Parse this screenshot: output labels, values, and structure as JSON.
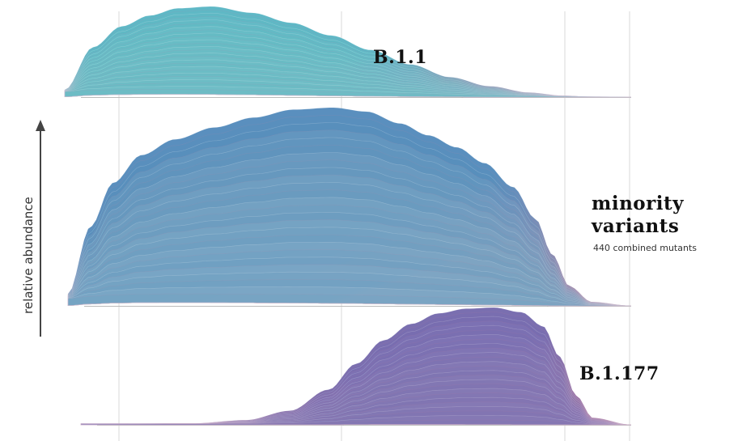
{
  "chart_data": {
    "type": "area",
    "style": "stacked streamgraph panels",
    "ylabel": "relative abundance",
    "grid": true,
    "panels": [
      {
        "name": "B.1.1",
        "subtitle": "",
        "colors": {
          "core": "#5fb8c6",
          "edge": "#a98bb0",
          "highlight": "#8fd2d8"
        },
        "profile": [
          [
            0.0,
            0.08
          ],
          [
            0.05,
            0.55
          ],
          [
            0.1,
            0.78
          ],
          [
            0.15,
            0.9
          ],
          [
            0.2,
            0.98
          ],
          [
            0.26,
            1.0
          ],
          [
            0.33,
            0.93
          ],
          [
            0.4,
            0.82
          ],
          [
            0.47,
            0.68
          ],
          [
            0.54,
            0.52
          ],
          [
            0.61,
            0.36
          ],
          [
            0.68,
            0.22
          ],
          [
            0.75,
            0.12
          ],
          [
            0.82,
            0.05
          ],
          [
            0.88,
            0.015
          ],
          [
            0.93,
            0.0
          ]
        ]
      },
      {
        "name": "minority variants",
        "subtitle": "440 combined mutants",
        "colors": {
          "core": "#5a8fbe",
          "edge": "#b38cab",
          "highlight": "#c8d8e4"
        },
        "profile": [
          [
            0.0,
            0.06
          ],
          [
            0.04,
            0.4
          ],
          [
            0.08,
            0.62
          ],
          [
            0.13,
            0.76
          ],
          [
            0.19,
            0.84
          ],
          [
            0.26,
            0.9
          ],
          [
            0.33,
            0.95
          ],
          [
            0.4,
            0.99
          ],
          [
            0.47,
            1.0
          ],
          [
            0.53,
            0.98
          ],
          [
            0.59,
            0.92
          ],
          [
            0.64,
            0.86
          ],
          [
            0.69,
            0.8
          ],
          [
            0.74,
            0.72
          ],
          [
            0.79,
            0.6
          ],
          [
            0.83,
            0.44
          ],
          [
            0.86,
            0.26
          ],
          [
            0.89,
            0.1
          ],
          [
            0.93,
            0.02
          ],
          [
            1.0,
            0.0
          ]
        ]
      },
      {
        "name": "B.1.177",
        "subtitle": "",
        "colors": {
          "core": "#7a6fb0",
          "edge": "#b07aa3",
          "highlight": "#a79bd0"
        },
        "profile": [
          [
            0.0,
            0.0
          ],
          [
            0.2,
            0.01
          ],
          [
            0.3,
            0.04
          ],
          [
            0.38,
            0.12
          ],
          [
            0.45,
            0.3
          ],
          [
            0.5,
            0.52
          ],
          [
            0.55,
            0.72
          ],
          [
            0.6,
            0.86
          ],
          [
            0.65,
            0.95
          ],
          [
            0.7,
            0.99
          ],
          [
            0.75,
            1.0
          ],
          [
            0.8,
            0.96
          ],
          [
            0.84,
            0.84
          ],
          [
            0.87,
            0.58
          ],
          [
            0.9,
            0.25
          ],
          [
            0.93,
            0.06
          ],
          [
            1.0,
            0.0
          ]
        ]
      }
    ]
  }
}
